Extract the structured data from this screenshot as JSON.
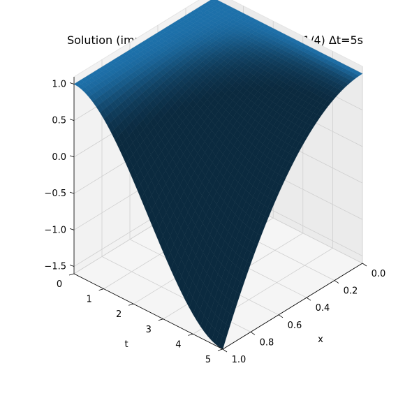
{
  "chart_data": {
    "type": "surface",
    "title": "Solution (implicit scheme with weights σ=1/4) Δt=5s",
    "xlabel": "x",
    "tlabel": "t",
    "zlabel": "",
    "x_ticks": [
      "0.0",
      "0.2",
      "0.4",
      "0.6",
      "0.8",
      "1.0"
    ],
    "t_ticks": [
      "0",
      "1",
      "2",
      "3",
      "4",
      "5"
    ],
    "z_ticks": [
      "1.0",
      "0.5",
      "0.0",
      "−0.5",
      "−1.0",
      "−1.5"
    ],
    "xlim": [
      0,
      1
    ],
    "tlim": [
      0,
      5
    ],
    "zlim": [
      -1.6,
      1.1
    ],
    "grid": true,
    "surface_color": "#1f77b4",
    "grid_size": [
      40,
      40
    ],
    "corner_values": [
      {
        "x": 0.0,
        "t": 0.0,
        "z": 1.0
      },
      {
        "x": 1.0,
        "t": 0.0,
        "z": 1.0
      },
      {
        "x": 0.0,
        "t": 5.0,
        "z": 1.0
      },
      {
        "x": 1.0,
        "t": 5.0,
        "z": -1.6
      }
    ]
  }
}
